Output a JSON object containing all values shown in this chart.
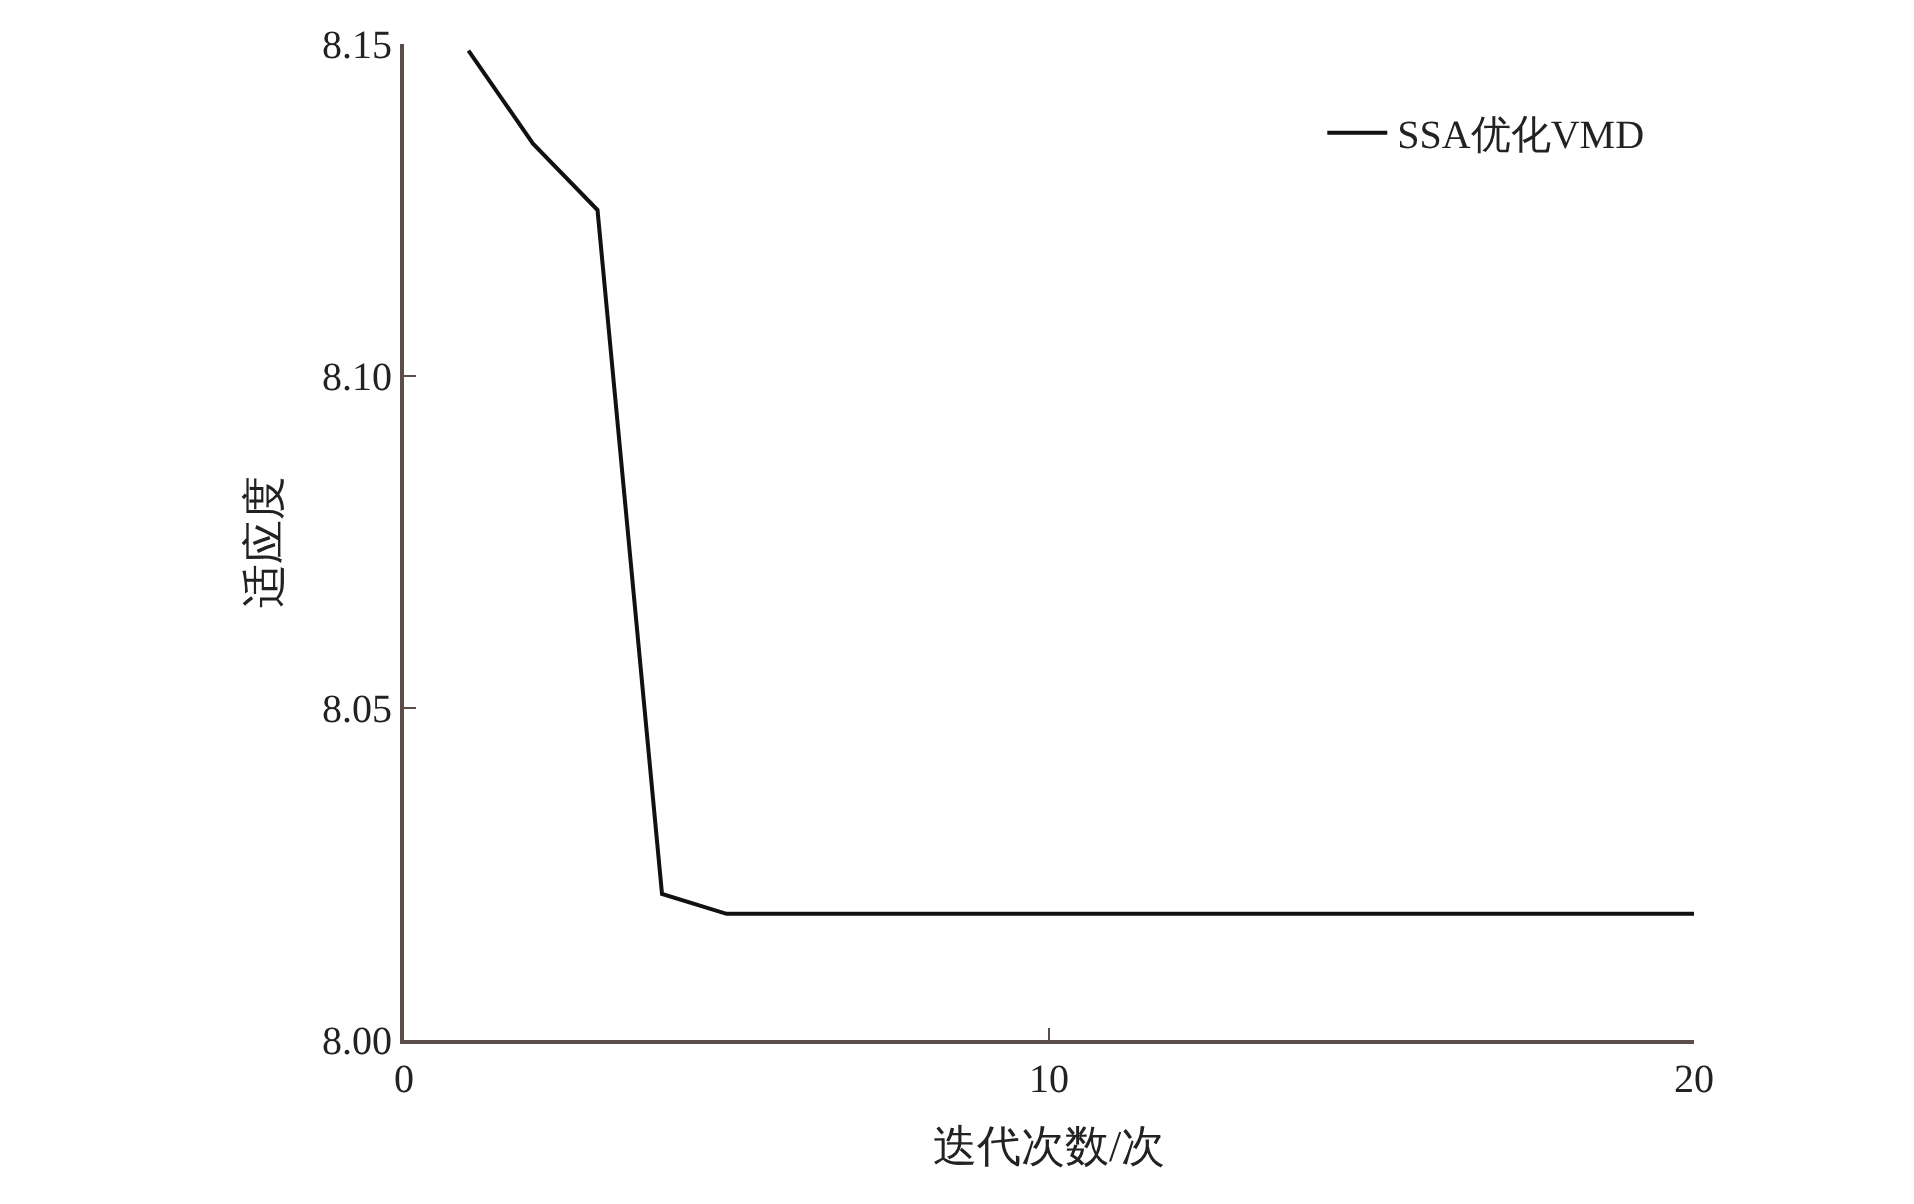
{
  "chart_data": {
    "type": "line",
    "xlabel": "迭代次数/次",
    "ylabel": "适应度",
    "x": [
      1,
      2,
      3,
      4,
      5,
      6,
      7,
      8,
      9,
      10,
      11,
      12,
      13,
      14,
      15,
      16,
      17,
      18,
      19,
      20
    ],
    "series": [
      {
        "name": "SSA优化VMD",
        "color": "#111111",
        "values": [
          8.149,
          8.135,
          8.125,
          8.022,
          8.019,
          8.019,
          8.019,
          8.019,
          8.019,
          8.019,
          8.019,
          8.019,
          8.019,
          8.019,
          8.019,
          8.019,
          8.019,
          8.019,
          8.019,
          8.019
        ]
      }
    ],
    "xlim": [
      0,
      20
    ],
    "xticks": [
      0,
      10,
      20
    ],
    "ylim": [
      8.0,
      8.15
    ],
    "yticks": [
      {
        "value": 8.0,
        "label": "8.00"
      },
      {
        "value": 8.05,
        "label": "8.05"
      },
      {
        "value": 8.1,
        "label": "8.10"
      },
      {
        "value": 8.15,
        "label": "8.15"
      }
    ],
    "legend": "top right",
    "marker": "none",
    "line_style": "solid"
  }
}
